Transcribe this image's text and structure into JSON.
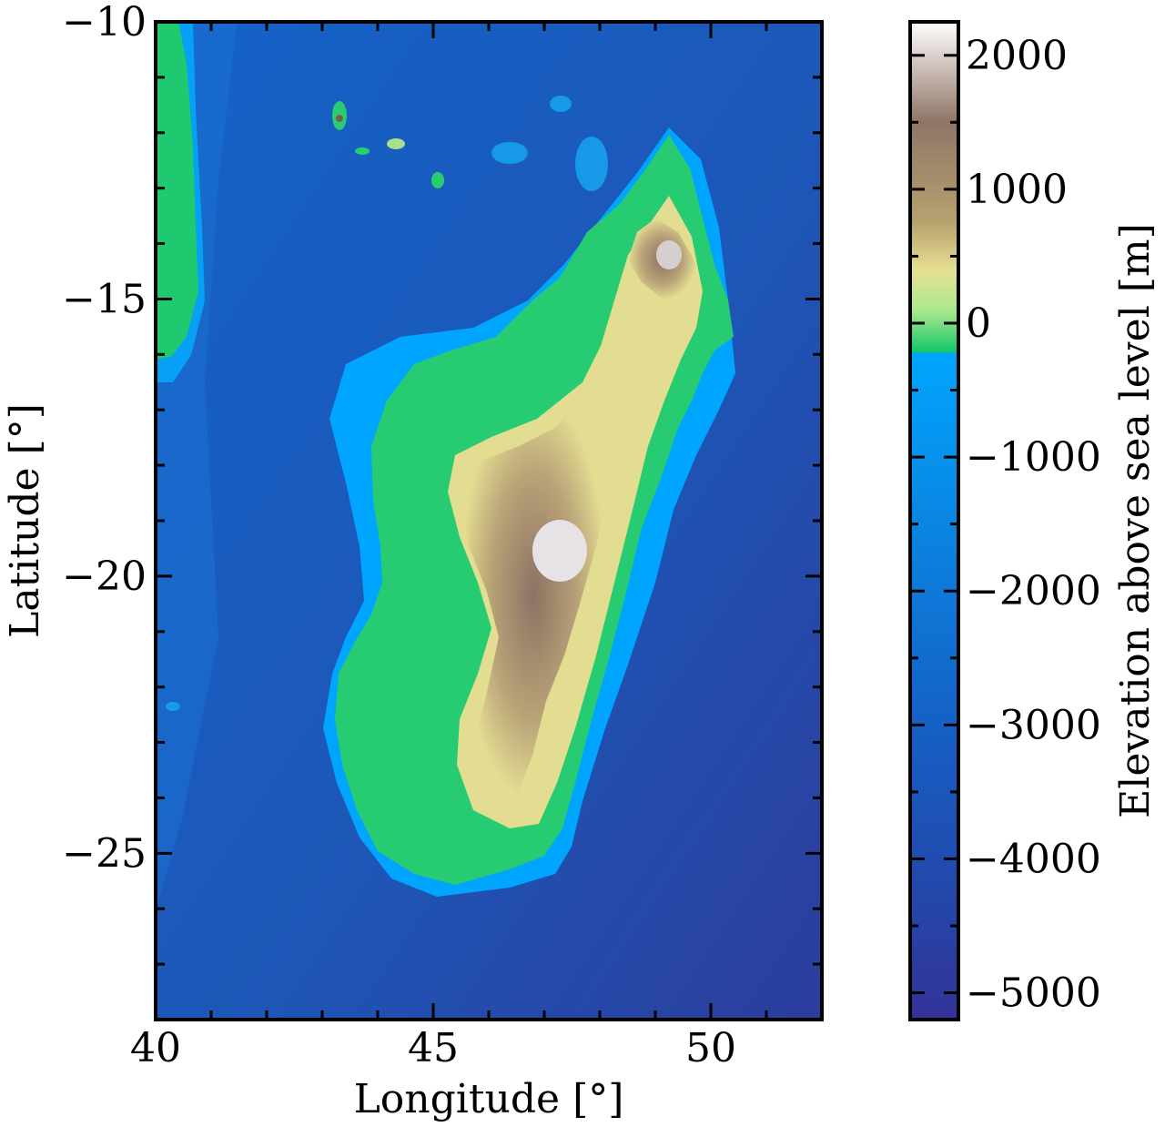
{
  "chart_data": {
    "type": "heatmap",
    "subject": "Topography and bathymetry around Madagascar",
    "xlabel": "Longitude [°]",
    "ylabel": "Latitude [°]",
    "xlim": [
      40,
      52
    ],
    "ylim": [
      -28,
      -10
    ],
    "x_ticks": [
      40,
      45,
      50
    ],
    "x_tick_labels": [
      "40",
      "45",
      "50"
    ],
    "y_ticks": [
      -10,
      -15,
      -20,
      -25
    ],
    "y_tick_labels": [
      "−10",
      "−15",
      "−20",
      "−25"
    ],
    "colorbar": {
      "label": "Elevation above sea level [m]",
      "range": [
        -5200,
        2250
      ],
      "ticks": [
        2000,
        1000,
        0,
        -1000,
        -2000,
        -3000,
        -4000,
        -5000
      ],
      "tick_labels": [
        "2000",
        "1000",
        "0",
        "−1000",
        "−2000",
        "−3000",
        "−4000",
        "−5000"
      ],
      "colormap_stops": [
        {
          "value": -5200,
          "color": "#333399"
        },
        {
          "value": -3000,
          "color": "#1560c8"
        },
        {
          "value": -1000,
          "color": "#0a8ee6"
        },
        {
          "value": 0,
          "color": "#00a5ff"
        },
        {
          "value": 1,
          "color": "#15c66a"
        },
        {
          "value": 500,
          "color": "#9ee69a"
        },
        {
          "value": 1000,
          "color": "#e6e193"
        },
        {
          "value": 1600,
          "color": "#7c5e4f"
        },
        {
          "value": 2250,
          "color": "#ffffff"
        }
      ]
    },
    "grid": false
  }
}
